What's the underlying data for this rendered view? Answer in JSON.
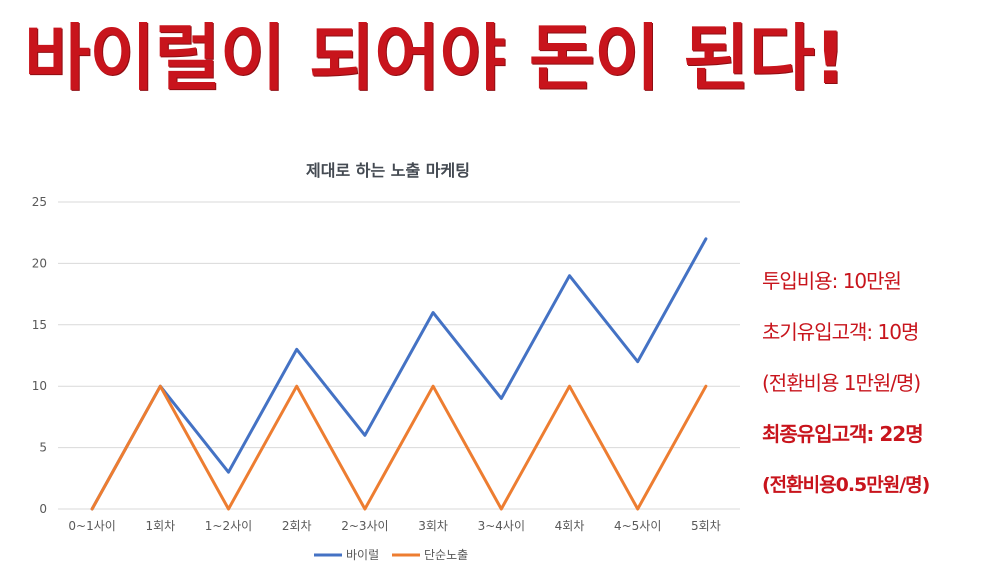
{
  "headline": "바이럴이 되어야 돈이 된다!",
  "info": {
    "line1": "투입비용: 10만원",
    "line2": "초기유입고객: 10명",
    "line3": "(전환비용 1만원/명)",
    "line4": "최종유입고객: 22명",
    "line5": "(전환비용0.5만원/명)"
  },
  "colors": {
    "accent": "#c8141c",
    "series1": "#4472c4",
    "series2": "#ed7d31",
    "grid": "#d9d9d9"
  },
  "chart_data": {
    "type": "line",
    "title": "제대로 하는 노출 마케팅",
    "categories": [
      "0~1사이",
      "1회차",
      "1~2사이",
      "2회차",
      "2~3사이",
      "3회차",
      "3~4사이",
      "4회차",
      "4~5사이",
      "5회차"
    ],
    "yticks": [
      "0",
      "5",
      "10",
      "15",
      "20",
      "25"
    ],
    "ylim": [
      0,
      25
    ],
    "grid": true,
    "legend": "bottom",
    "series": [
      {
        "name": "바이럴",
        "color": "#4472c4",
        "values": [
          0,
          10,
          3,
          13,
          6,
          16,
          9,
          19,
          12,
          22
        ]
      },
      {
        "name": "단순노출",
        "color": "#ed7d31",
        "values": [
          0,
          10,
          0,
          10,
          0,
          10,
          0,
          10,
          0,
          10
        ]
      }
    ]
  }
}
